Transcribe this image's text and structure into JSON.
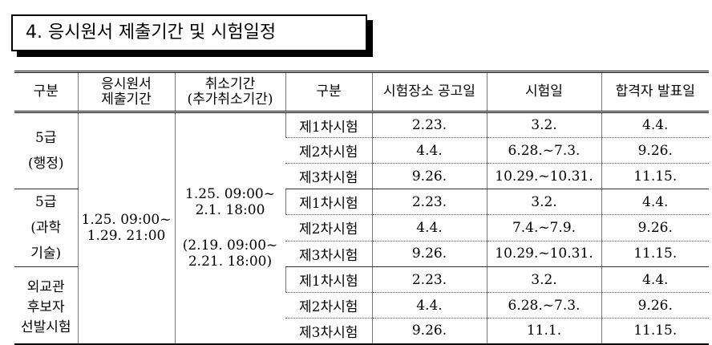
{
  "header": {
    "title": "4. 응시원서 제출기간 및 시험일정"
  },
  "table": {
    "columns": [
      [
        "구분"
      ],
      [
        "응시원서",
        "제출기간"
      ],
      [
        "취소기간",
        "(추가취소기간)"
      ],
      [
        "구분"
      ],
      [
        "시험장소 공고일"
      ],
      [
        "시험일"
      ],
      [
        "합격자 발표일"
      ]
    ],
    "application_period": [
      "1.25. 09:00~",
      "1.29. 21:00"
    ],
    "cancel_period": [
      [
        "1.25. 09:00~",
        "2.1. 18:00"
      ],
      [
        "(2.19. 09:00~",
        "2.21. 18:00)"
      ]
    ],
    "groups": [
      {
        "name": [
          "5급",
          "(행정)"
        ],
        "rows": [
          [
            "제1차시험",
            "2.23.",
            "3.2.",
            "4.4."
          ],
          [
            "제2차시험",
            "4.4.",
            "6.28.~7.3.",
            "9.26."
          ],
          [
            "제3차시험",
            "9.26.",
            "10.29.~10.31.",
            "11.15."
          ]
        ]
      },
      {
        "name": [
          "5급",
          "(과학",
          "기술)"
        ],
        "rows": [
          [
            "제1차시험",
            "2.23.",
            "3.2.",
            "4.4."
          ],
          [
            "제2차시험",
            "4.4.",
            "7.4.~7.9.",
            "9.26."
          ],
          [
            "제3차시험",
            "9.26.",
            "10.29.~10.31.",
            "11.15."
          ]
        ]
      },
      {
        "name": [
          "외교관",
          "후보자",
          "선발시험"
        ],
        "rows": [
          [
            "제1차시험",
            "2.23.",
            "3.2.",
            "4.4."
          ],
          [
            "제2차시험",
            "4.4.",
            "6.28.~7.3.",
            "9.26."
          ],
          [
            "제3차시험",
            "9.26.",
            "11.1.",
            "11.15."
          ]
        ]
      }
    ]
  }
}
